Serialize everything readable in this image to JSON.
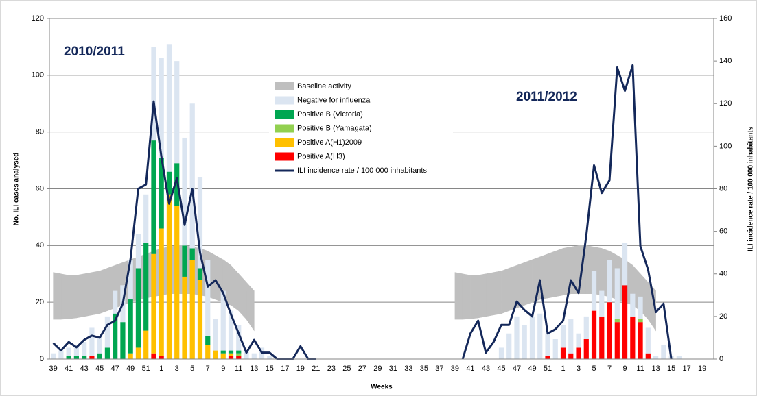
{
  "chart_data": {
    "type": "bar",
    "annotations": [
      "2010/2011",
      "2011/2012"
    ],
    "xlabel": "Weeks",
    "ylabel": "No. ILI cases analysed",
    "y2label": "ILI incidence rate / 100 000 inhabitants",
    "categories": [
      "39",
      null,
      "41",
      null,
      "43",
      null,
      "45",
      null,
      "47",
      null,
      "49",
      null,
      "51",
      null,
      "1",
      null,
      "3",
      null,
      "5",
      null,
      "7",
      null,
      "9",
      null,
      "11",
      null,
      "13",
      null,
      "15",
      null,
      "17",
      null,
      "19",
      null,
      "21",
      null,
      "23",
      null,
      "25",
      null,
      "27",
      null,
      "29",
      null,
      "31",
      null,
      "33",
      null,
      "35",
      null,
      "37",
      null,
      "39",
      null,
      "41",
      null,
      "43",
      null,
      "45",
      null,
      "47",
      null,
      "49",
      null,
      "51",
      null,
      "1",
      null,
      "3",
      null,
      "5",
      null,
      "7",
      null,
      "9",
      null,
      "11",
      null,
      "13",
      null,
      "15",
      null,
      "17",
      null,
      "19",
      null
    ],
    "ylim": [
      0,
      120
    ],
    "yticks": [
      0,
      20,
      40,
      60,
      80,
      100,
      120
    ],
    "y2lim": [
      0,
      160
    ],
    "y2ticks": [
      0,
      20,
      40,
      60,
      80,
      100,
      120,
      140,
      160
    ],
    "grid": true,
    "series": [
      {
        "name": "Baseline activity",
        "type": "area",
        "color": "#bfbfbf",
        "low": [
          14,
          14,
          14.2,
          14.5,
          15,
          15.5,
          16,
          17,
          18,
          19,
          20,
          21,
          21.5,
          22,
          22.5,
          23,
          23,
          23,
          23,
          22.5,
          22,
          21,
          20,
          19,
          17,
          14,
          10,
          null,
          null,
          null,
          null,
          null,
          null,
          null,
          null,
          null,
          null,
          null,
          null,
          null,
          null,
          null,
          null,
          null,
          null,
          null,
          null,
          null,
          null,
          null,
          null,
          null,
          14,
          14,
          14.2,
          14.5,
          15,
          15.5,
          16,
          17,
          18,
          19,
          20,
          21,
          21.5,
          22,
          22.5,
          23,
          23,
          23,
          23,
          22.5,
          22,
          21,
          20,
          19,
          17,
          14,
          10,
          null,
          null,
          null,
          null,
          null,
          null,
          null
        ],
        "high": [
          30.5,
          30,
          29.5,
          29.5,
          30,
          30.5,
          31,
          32,
          33,
          34,
          35,
          36,
          37,
          38,
          39,
          39.5,
          40,
          40,
          39.5,
          39,
          38,
          36.5,
          35,
          33,
          30,
          27,
          24,
          null,
          null,
          null,
          null,
          null,
          null,
          null,
          null,
          null,
          null,
          null,
          null,
          null,
          null,
          null,
          null,
          null,
          null,
          null,
          null,
          null,
          null,
          null,
          null,
          null,
          30.5,
          30,
          29.5,
          29.5,
          30,
          30.5,
          31,
          32,
          33,
          34,
          35,
          36,
          37,
          38,
          39,
          39.5,
          40,
          40,
          39.5,
          39,
          38,
          36.5,
          35,
          33,
          30,
          27,
          24,
          null,
          null,
          null,
          null,
          null,
          null,
          null
        ]
      },
      {
        "name": "Negative for influenza",
        "type": "bar",
        "color": "#dbe5f1",
        "values": [
          2,
          3,
          3,
          4,
          5,
          10,
          6,
          11,
          8,
          13,
          14,
          12,
          17,
          33,
          35,
          45,
          36,
          38,
          51,
          32,
          27,
          11,
          21,
          14,
          9,
          3,
          2,
          4,
          1,
          0,
          0,
          0,
          0,
          0,
          0,
          0,
          0,
          0,
          0,
          0,
          0,
          0,
          0,
          0,
          0,
          0,
          0,
          0,
          0,
          0,
          0,
          0,
          0,
          0,
          0,
          0,
          0,
          0,
          4,
          9,
          15,
          12,
          15,
          16,
          8,
          7,
          8,
          12,
          5,
          8,
          14,
          9,
          15,
          18,
          15,
          8,
          8,
          9,
          1,
          5,
          1,
          1,
          0,
          0,
          0,
          0
        ]
      },
      {
        "name": "Positive B (Victoria)",
        "type": "bar",
        "color": "#00a651",
        "values": [
          0,
          0,
          1,
          1,
          1,
          0,
          2,
          4,
          16,
          13,
          19,
          28,
          31,
          40,
          25,
          8,
          15,
          11,
          4,
          4,
          3,
          0,
          1,
          1,
          1,
          0,
          0,
          0,
          0,
          0,
          0,
          0,
          0,
          0,
          0,
          0,
          0,
          0,
          0,
          0,
          0,
          0,
          0,
          0,
          0,
          0,
          0,
          0,
          0,
          0,
          0,
          0,
          0,
          0,
          0,
          0,
          0,
          0,
          0,
          0,
          0,
          0,
          0,
          0,
          0,
          0,
          0,
          0,
          0,
          0,
          0,
          0,
          0,
          0,
          0,
          0,
          0,
          0,
          0,
          0,
          0,
          0,
          0,
          0,
          0,
          0
        ]
      },
      {
        "name": "Positive B (Yamagata)",
        "type": "bar",
        "color": "#92d050",
        "values": [
          0,
          0,
          0,
          0,
          0,
          0,
          0,
          0,
          0,
          0,
          0,
          0,
          0,
          0,
          0,
          0,
          0,
          0,
          0,
          0,
          0,
          0,
          0,
          0,
          1,
          0,
          0,
          0,
          0,
          0,
          0,
          0,
          0,
          0,
          0,
          0,
          0,
          0,
          0,
          0,
          0,
          0,
          0,
          0,
          0,
          0,
          0,
          0,
          0,
          0,
          0,
          0,
          0,
          0,
          0,
          0,
          0,
          0,
          0,
          0,
          0,
          0,
          0,
          0,
          0,
          0,
          0,
          0,
          0,
          0,
          0,
          0,
          0,
          1,
          0,
          0,
          1,
          0,
          0,
          0,
          0,
          0,
          0,
          0,
          0,
          0
        ]
      },
      {
        "name": "Positive A(H1)2009",
        "type": "bar",
        "color": "#ffc000",
        "values": [
          0,
          0,
          0,
          0,
          0,
          0,
          0,
          0,
          0,
          0,
          2,
          4,
          10,
          35,
          45,
          58,
          54,
          29,
          35,
          28,
          5,
          3,
          2,
          1,
          0,
          0,
          0,
          0,
          0,
          0,
          0,
          0,
          0,
          0,
          0,
          0,
          0,
          0,
          0,
          0,
          0,
          0,
          0,
          0,
          0,
          0,
          0,
          0,
          0,
          0,
          0,
          0,
          0,
          0,
          0,
          0,
          0,
          0,
          0,
          0,
          0,
          0,
          0,
          0,
          0,
          0,
          0,
          0,
          0,
          0,
          0,
          0,
          0,
          0,
          0,
          0,
          0,
          0,
          0,
          0,
          0,
          0,
          0,
          0,
          0,
          0
        ]
      },
      {
        "name": "Positive A(H3)",
        "type": "bar",
        "color": "#ff0000",
        "values": [
          0,
          0,
          0,
          0,
          0,
          1,
          0,
          0,
          0,
          0,
          0,
          0,
          0,
          2,
          1,
          0,
          0,
          0,
          0,
          0,
          0,
          0,
          0,
          1,
          1,
          0,
          0,
          0,
          0,
          0,
          0,
          0,
          0,
          0,
          0,
          0,
          0,
          0,
          0,
          0,
          0,
          0,
          0,
          0,
          0,
          0,
          0,
          0,
          0,
          0,
          0,
          0,
          0,
          0,
          0,
          0,
          0,
          0,
          0,
          0,
          0,
          0,
          0,
          0,
          1,
          0,
          4,
          2,
          4,
          7,
          17,
          15,
          20,
          13,
          26,
          15,
          13,
          2,
          0,
          0,
          0,
          0,
          0,
          0,
          0,
          0
        ]
      },
      {
        "name": "ILI incidence rate / 100 000 inhabitants",
        "type": "line",
        "axis": "y2",
        "color": "#14285a",
        "values": [
          7.5,
          4,
          8,
          5.5,
          9,
          11,
          10,
          16,
          18,
          26,
          47,
          80,
          82,
          121,
          95,
          73,
          85,
          63,
          80,
          50,
          34,
          37,
          31,
          21,
          12,
          3,
          9,
          3,
          3,
          0,
          0,
          0,
          6,
          0,
          0,
          null,
          null,
          null,
          null,
          null,
          null,
          null,
          null,
          null,
          null,
          null,
          null,
          null,
          null,
          null,
          null,
          null,
          null,
          0,
          12,
          18,
          3,
          8,
          16,
          16,
          27,
          23,
          20,
          37,
          12,
          14,
          18,
          37,
          31,
          58,
          91,
          78,
          84,
          137,
          126,
          138,
          53,
          42,
          22,
          26,
          0,
          null,
          null,
          null,
          null,
          null
        ]
      }
    ]
  }
}
